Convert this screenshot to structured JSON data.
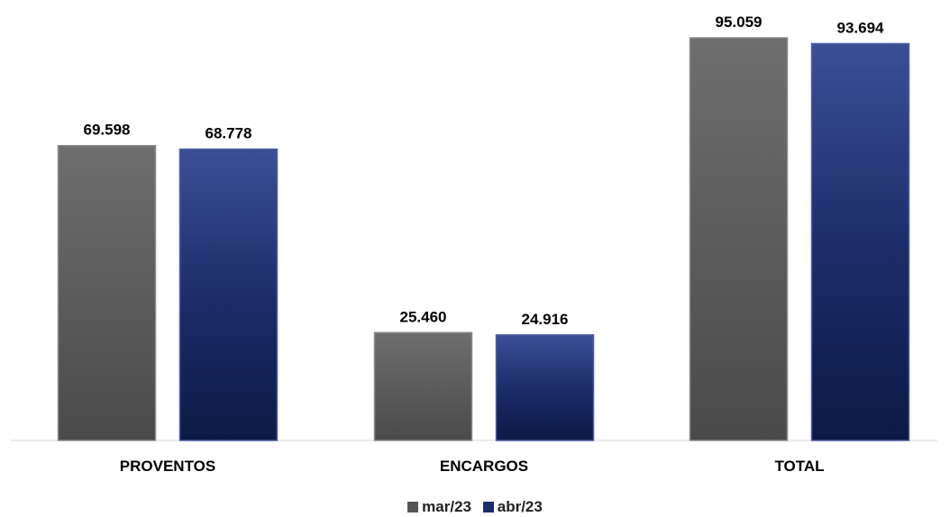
{
  "chart_data": {
    "type": "bar",
    "title": "",
    "xlabel": "",
    "ylabel": "",
    "categories": [
      "PROVENTOS",
      "ENCARGOS",
      "TOTAL"
    ],
    "series": [
      {
        "name": "mar/23",
        "values": [
          69598,
          25460,
          95059
        ],
        "labels": [
          "69.598",
          "25.460",
          "95.059"
        ],
        "color": "#5a5a5a"
      },
      {
        "name": "abr/23",
        "values": [
          68778,
          24916,
          93694
        ],
        "labels": [
          "68.778",
          "24.916",
          "93.694"
        ],
        "color": "#1c2d6b"
      }
    ],
    "ylim": [
      0,
      95059
    ],
    "grid": false,
    "legend_position": "bottom"
  }
}
